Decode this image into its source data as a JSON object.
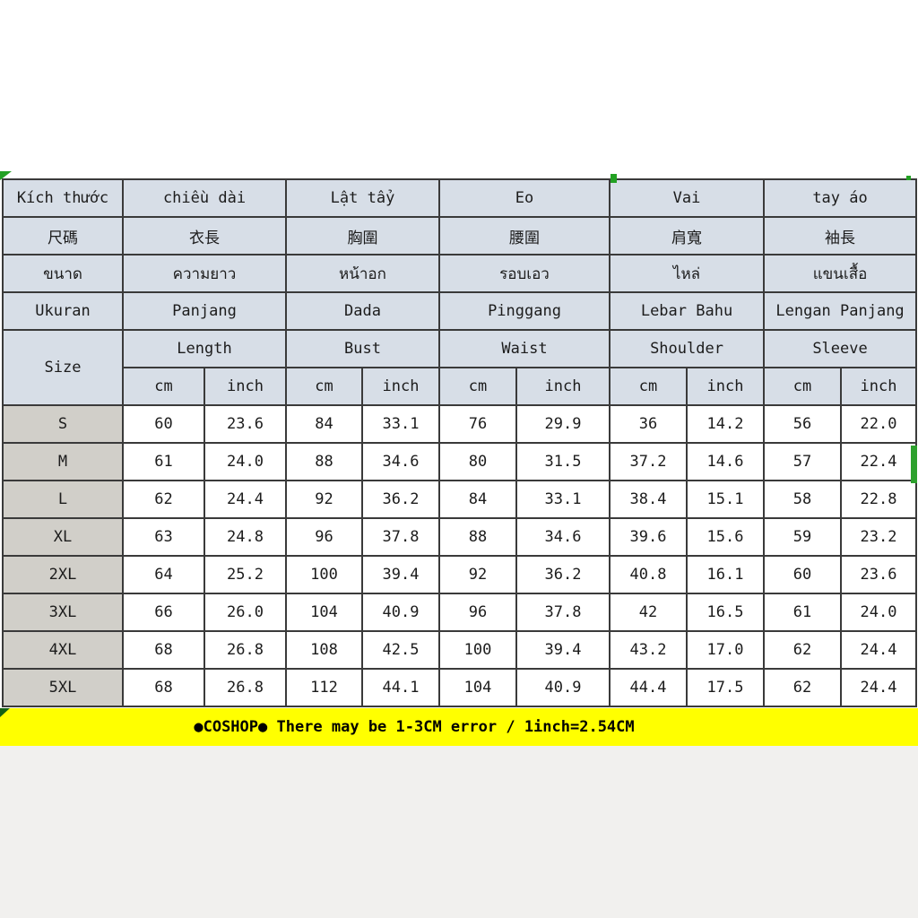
{
  "colors": {
    "accent_green": "#23a123",
    "bar_yellow": "#ffff00",
    "header_bg": "#d7dee7",
    "size_col_bg": "#d1cfc9",
    "border": "#3a3a3a",
    "bottom_bg": "#f1f0ee"
  },
  "table": {
    "language_rows": [
      {
        "language": "Vietnamese",
        "cells": [
          "Kích thước",
          "chiều dài",
          "Lật tẩy",
          "Eo",
          "Vai",
          "tay áo"
        ]
      },
      {
        "language": "Chinese",
        "cells": [
          "尺碼",
          "衣長",
          "胸圍",
          "腰圍",
          "肩寬",
          "袖長"
        ]
      },
      {
        "language": "Thai",
        "cells": [
          "ขนาด",
          "ความยาว",
          "หน้าอก",
          "รอบเอว",
          "ไหล่",
          "แขนเสื้อ"
        ]
      },
      {
        "language": "Indonesian",
        "cells": [
          "Ukuran",
          "Panjang",
          "Dada",
          "Pinggang",
          "Lebar Bahu",
          "Lengan Panjang"
        ]
      },
      {
        "language": "English",
        "cells": [
          "Size",
          "Length",
          "Bust",
          "Waist",
          "Shoulder",
          "Sleeve"
        ]
      }
    ],
    "units": [
      "cm",
      "inch"
    ],
    "rows": [
      {
        "size": "S",
        "values": [
          "60",
          "23.6",
          "84",
          "33.1",
          "76",
          "29.9",
          "36",
          "14.2",
          "56",
          "22.0"
        ]
      },
      {
        "size": "M",
        "values": [
          "61",
          "24.0",
          "88",
          "34.6",
          "80",
          "31.5",
          "37.2",
          "14.6",
          "57",
          "22.4"
        ]
      },
      {
        "size": "L",
        "values": [
          "62",
          "24.4",
          "92",
          "36.2",
          "84",
          "33.1",
          "38.4",
          "15.1",
          "58",
          "22.8"
        ]
      },
      {
        "size": "XL",
        "values": [
          "63",
          "24.8",
          "96",
          "37.8",
          "88",
          "34.6",
          "39.6",
          "15.6",
          "59",
          "23.2"
        ]
      },
      {
        "size": "2XL",
        "values": [
          "64",
          "25.2",
          "100",
          "39.4",
          "92",
          "36.2",
          "40.8",
          "16.1",
          "60",
          "23.6"
        ]
      },
      {
        "size": "3XL",
        "values": [
          "66",
          "26.0",
          "104",
          "40.9",
          "96",
          "37.8",
          "42",
          "16.5",
          "61",
          "24.0"
        ]
      },
      {
        "size": "4XL",
        "values": [
          "68",
          "26.8",
          "108",
          "42.5",
          "100",
          "39.4",
          "43.2",
          "17.0",
          "62",
          "24.4"
        ]
      },
      {
        "size": "5XL",
        "values": [
          "68",
          "26.8",
          "112",
          "44.1",
          "104",
          "40.9",
          "44.4",
          "17.5",
          "62",
          "24.4"
        ]
      }
    ]
  },
  "footer": {
    "note": "●COSHOP● There may be 1-3CM error / 1inch=2.54CM"
  }
}
